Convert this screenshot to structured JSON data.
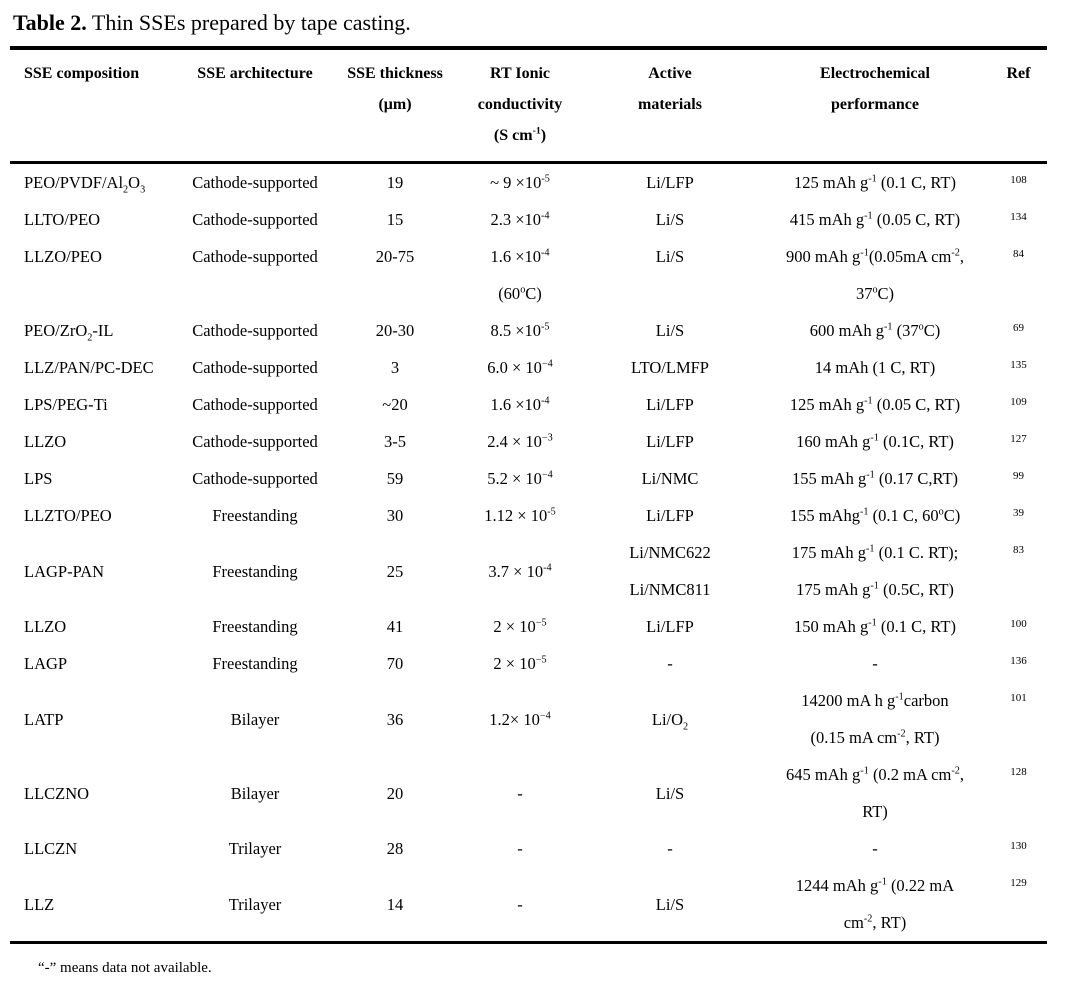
{
  "page": {
    "caption_label": "Table 2.",
    "caption_text": " Thin SSEs prepared by tape casting.",
    "footnote": "“-” means data not available."
  },
  "table": {
    "columns": [
      "SSE composition",
      "SSE architecture",
      "SSE thickness\n(μm)",
      "RT Ionic\nconductivity\n(S cm^{-1})",
      "Active\nmaterials",
      "Electrochemical\nperformance",
      "Ref"
    ],
    "rows": [
      [
        "PEO/PVDF/Al_{2}O_{3}",
        "Cathode-supported",
        "19",
        "~ 9 ×10^{-5}",
        "Li/LFP",
        "125 mAh g^{-1} (0.1 C, RT)",
        "108"
      ],
      [
        "LLTO/PEO",
        "Cathode-supported",
        "15",
        "2.3 ×10^{-4}",
        "Li/S",
        "415 mAh g^{-1} (0.05 C, RT)",
        "134"
      ],
      [
        "LLZO/PEO",
        "Cathode-supported",
        "20-75",
        "1.6 ×10^{-4}\n(60^{o}C)",
        "Li/S",
        "900 mAh g^{-1}(0.05mA cm^{-2},\n37^{o}C)",
        "84"
      ],
      [
        "PEO/ZrO_{2}-IL",
        "Cathode-supported",
        "20-30",
        "8.5 ×10^{-5}",
        "Li/S",
        "600 mAh g^{-1} (37^{o}C)",
        "69"
      ],
      [
        "LLZ/PAN/PC-DEC",
        "Cathode-supported",
        "3",
        "6.0 × 10^{−4}",
        "LTO/LMFP",
        "14 mAh (1 C, RT)",
        "135"
      ],
      [
        "LPS/PEG-Ti",
        "Cathode-supported",
        "~20",
        "1.6 ×10^{-4}",
        "Li/LFP",
        "125 mAh g^{-1} (0.05 C, RT)",
        "109"
      ],
      [
        "LLZO",
        "Cathode-supported",
        "3-5",
        "2.4 × 10^{−3}",
        "Li/LFP",
        "160 mAh g^{-1} (0.1C, RT)",
        "127"
      ],
      [
        "LPS",
        "Cathode-supported",
        "59",
        "5.2 × 10^{−4}",
        "Li/NMC",
        "155 mAh g^{-1} (0.17 C,RT)",
        "99"
      ],
      [
        "LLZTO/PEO",
        "Freestanding",
        "30",
        "1.12 × 10^{-5}",
        "Li/LFP",
        "155 mAhg^{-1} (0.1 C, 60^{o}C)",
        "39"
      ],
      [
        "LAGP-PAN",
        "Freestanding",
        "25",
        "3.7 × 10^{-4}",
        "Li/NMC622\nLi/NMC811",
        "175 mAh g^{-1} (0.1 C. RT);\n175 mAh g^{-1} (0.5C, RT)",
        "83"
      ],
      [
        "LLZO",
        "Freestanding",
        "41",
        "2 × 10^{−5}",
        "Li/LFP",
        "150 mAh g^{-1} (0.1 C, RT)",
        "100"
      ],
      [
        "LAGP",
        "Freestanding",
        "70",
        "2 × 10^{−5}",
        "-",
        "-",
        "136"
      ],
      [
        "LATP",
        "Bilayer",
        "36",
        "1.2× 10^{−4}",
        "Li/O_{2}",
        "14200 mA h g^{-1}carbon\n(0.15 mA cm^{-2}, RT)",
        "101"
      ],
      [
        "LLCZNO",
        "Bilayer",
        "20",
        "-",
        "Li/S",
        "645 mAh g^{-1} (0.2 mA cm^{-2},\nRT)",
        "128"
      ],
      [
        "LLCZN",
        "Trilayer",
        "28",
        "-",
        "-",
        "-",
        "130"
      ],
      [
        "LLZ",
        "Trilayer",
        "14",
        "-",
        "Li/S",
        "1244 mAh g^{-1} (0.22 mA\ncm^{-2}, RT)",
        "129"
      ]
    ]
  }
}
